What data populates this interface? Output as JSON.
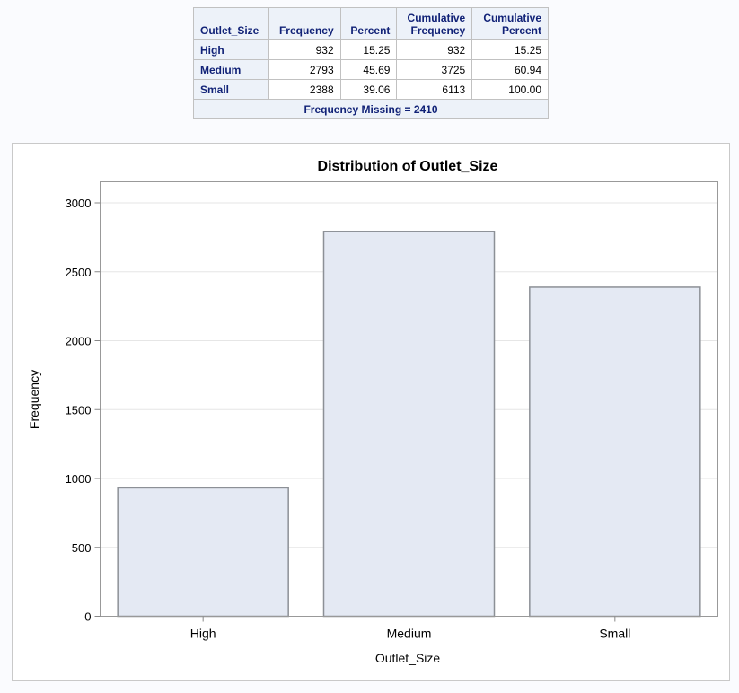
{
  "table": {
    "headers": [
      [
        "Outlet_Size"
      ],
      [
        "Frequency"
      ],
      [
        "Percent"
      ],
      [
        "Cumulative",
        "Frequency"
      ],
      [
        "Cumulative",
        "Percent"
      ]
    ],
    "rows": [
      {
        "label": "High",
        "frequency": "932",
        "percent": "15.25",
        "cum_frequency": "932",
        "cum_percent": "15.25"
      },
      {
        "label": "Medium",
        "frequency": "2793",
        "percent": "45.69",
        "cum_frequency": "3725",
        "cum_percent": "60.94"
      },
      {
        "label": "Small",
        "frequency": "2388",
        "percent": "39.06",
        "cum_frequency": "6113",
        "cum_percent": "100.00"
      }
    ],
    "footer": "Frequency Missing = 2410"
  },
  "chart_data": {
    "type": "bar",
    "title": "Distribution of Outlet_Size",
    "xlabel": "Outlet_Size",
    "ylabel": "Frequency",
    "categories": [
      "High",
      "Medium",
      "Small"
    ],
    "values": [
      932,
      2793,
      2388
    ],
    "ylim": [
      0,
      3000
    ],
    "yticks": [
      0,
      500,
      1000,
      1500,
      2000,
      2500,
      3000
    ],
    "grid": true,
    "bar_fill": "#e4e9f3",
    "bar_stroke": "#8c9096"
  }
}
